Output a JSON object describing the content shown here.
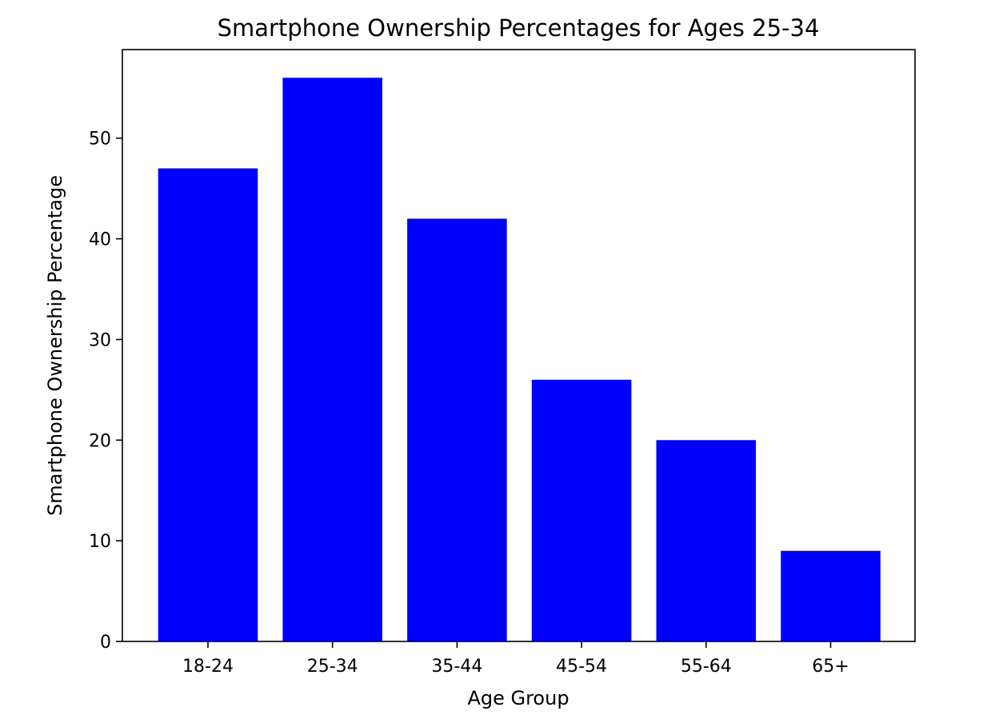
{
  "chart_data": {
    "type": "bar",
    "title": "Smartphone Ownership Percentages for Ages 25-34",
    "xlabel": "Age Group",
    "ylabel": "Smartphone Ownership Percentage",
    "categories": [
      "18-24",
      "25-34",
      "35-44",
      "45-54",
      "55-64",
      "65+"
    ],
    "values": [
      47,
      56,
      42,
      26,
      20,
      9
    ],
    "ylim": [
      0,
      58.8
    ],
    "yticks": [
      0,
      10,
      20,
      30,
      40,
      50
    ],
    "bar_color": "#0000ff",
    "grid": false,
    "legend": "none"
  }
}
